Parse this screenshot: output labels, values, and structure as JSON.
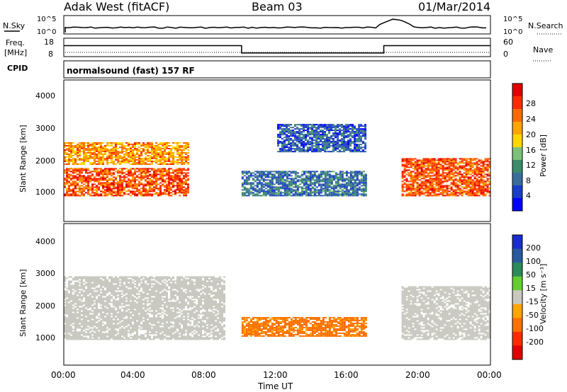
{
  "header": {
    "station": "Adak West (fitACF)",
    "beam": "Beam 03",
    "date": "01/Mar/2014"
  },
  "noise_panel": {
    "left_label": "N.Sky",
    "right_label": "N.Search",
    "left_ticks": [
      "10^5",
      "10^0"
    ],
    "right_ticks": [
      "10^5",
      "10^0"
    ]
  },
  "freq_panel": {
    "left_label_1": "Freq.",
    "left_label_2": "[MHz]",
    "right_label": "Nave",
    "left_ticks": [
      "18",
      "8"
    ],
    "right_ticks": [
      "60",
      "0"
    ]
  },
  "cpid_panel": {
    "label": "CPID",
    "program": "normalsound (fast) 157 RF"
  },
  "power_panel": {
    "ylabel": "Slant Range [km]",
    "yticks": [
      "4000",
      "3000",
      "2000",
      "1000"
    ],
    "colorbar_label": "Power [dB]",
    "colorbar_ticks": [
      "28",
      "24",
      "20",
      "16",
      "12",
      "8",
      "4"
    ],
    "colors": [
      "#0000ff",
      "#1a3cc8",
      "#3a6e9a",
      "#3c8c6a",
      "#7ec07a",
      "#ffd700",
      "#ffa500",
      "#ff6a00",
      "#ff2a00",
      "#e00000"
    ]
  },
  "velocity_panel": {
    "ylabel": "Slant Range [km]",
    "yticks": [
      "4000",
      "3000",
      "2000",
      "1000"
    ],
    "colorbar_label": "Velocity [m s⁻¹]",
    "colorbar_ticks": [
      "200",
      "100",
      "50",
      "15",
      "-15",
      "-50",
      "-100",
      "-200"
    ],
    "colors": [
      "#1a2ccc",
      "#2a5a9c",
      "#2e8a5a",
      "#66cc33",
      "#c8c8c0",
      "#ffa500",
      "#ff7000",
      "#ff2a00",
      "#e00000"
    ]
  },
  "x_axis": {
    "label": "Time UT",
    "ticks": [
      "00:00",
      "04:00",
      "08:00",
      "12:00",
      "16:00",
      "20:00",
      "00:00"
    ]
  },
  "chart_data": {
    "type": "heatmap",
    "x_range_hours": [
      0,
      24
    ],
    "y_range_km": [
      0,
      4500
    ],
    "frequency_mhz": [
      {
        "start_h": 0,
        "end_h": 10,
        "value": 14
      },
      {
        "start_h": 10,
        "end_h": 18,
        "value": 9
      },
      {
        "start_h": 18,
        "end_h": 24,
        "value": 14
      }
    ],
    "power_regions_db": [
      {
        "t0": 0,
        "t1": 7,
        "r0": 800,
        "r1": 1700,
        "power": 26
      },
      {
        "t0": 0,
        "t1": 7,
        "r0": 1800,
        "r1": 2500,
        "power": 22
      },
      {
        "t0": 10,
        "t1": 17,
        "r0": 800,
        "r1": 1600,
        "power": 10
      },
      {
        "t0": 12,
        "t1": 17,
        "r0": 2200,
        "r1": 3100,
        "power": 8
      },
      {
        "t0": 19,
        "t1": 24,
        "r0": 800,
        "r1": 2000,
        "power": 26
      }
    ],
    "velocity_regions_ms": [
      {
        "t0": 0,
        "t1": 9,
        "r0": 800,
        "r1": 2800,
        "velocity": 0
      },
      {
        "t0": 10,
        "t1": 17,
        "r0": 900,
        "r1": 1500,
        "velocity": -60
      },
      {
        "t0": 19,
        "t1": 24,
        "r0": 800,
        "r1": 2500,
        "velocity": 0
      }
    ]
  }
}
